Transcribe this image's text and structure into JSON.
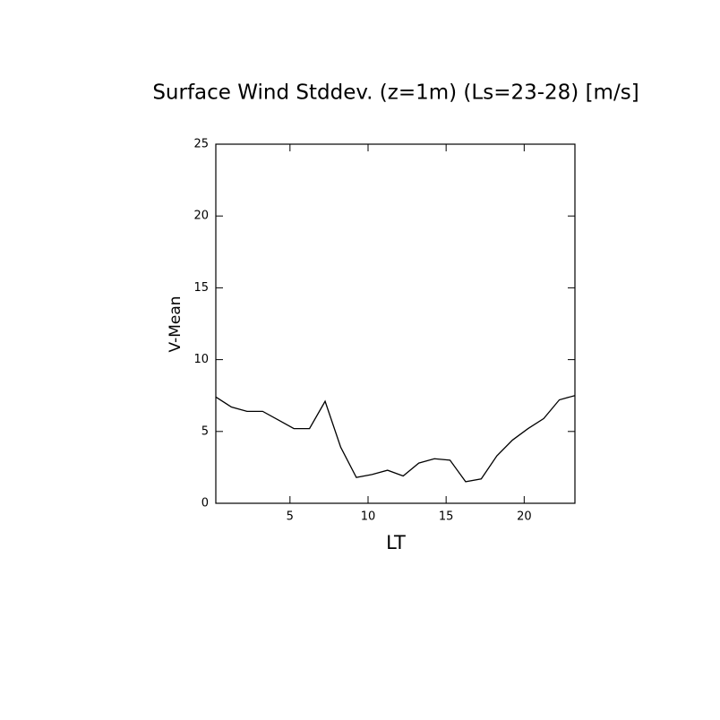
{
  "chart_data": {
    "type": "line",
    "title": "Surface Wind Stddev. (z=1m) (Ls=23-28) [m/s]",
    "x_label": "LT",
    "y_label": "V-Mean",
    "x": [
      0.25,
      1.25,
      2.25,
      3.25,
      4.25,
      5.25,
      6.25,
      7.25,
      8.25,
      9.25,
      10.25,
      11.25,
      12.25,
      13.25,
      14.25,
      15.25,
      16.25,
      17.25,
      18.25,
      19.25,
      20.25,
      21.25,
      22.25,
      23.25
    ],
    "series": [
      {
        "name": "V-Mean",
        "color": "#000000",
        "values": [
          7.4,
          6.7,
          6.4,
          6.4,
          5.8,
          5.2,
          5.2,
          7.1,
          3.9,
          1.8,
          2.0,
          2.3,
          1.9,
          2.8,
          3.1,
          3.0,
          1.5,
          1.7,
          3.3,
          4.4,
          5.2,
          5.9,
          7.2,
          7.5
        ]
      }
    ],
    "xlim": [
      0.25,
      23.25
    ],
    "ylim": [
      0,
      25
    ],
    "xticks": [
      5,
      10,
      15,
      20
    ],
    "yticks": [
      0,
      5,
      10,
      15,
      20,
      25
    ]
  }
}
